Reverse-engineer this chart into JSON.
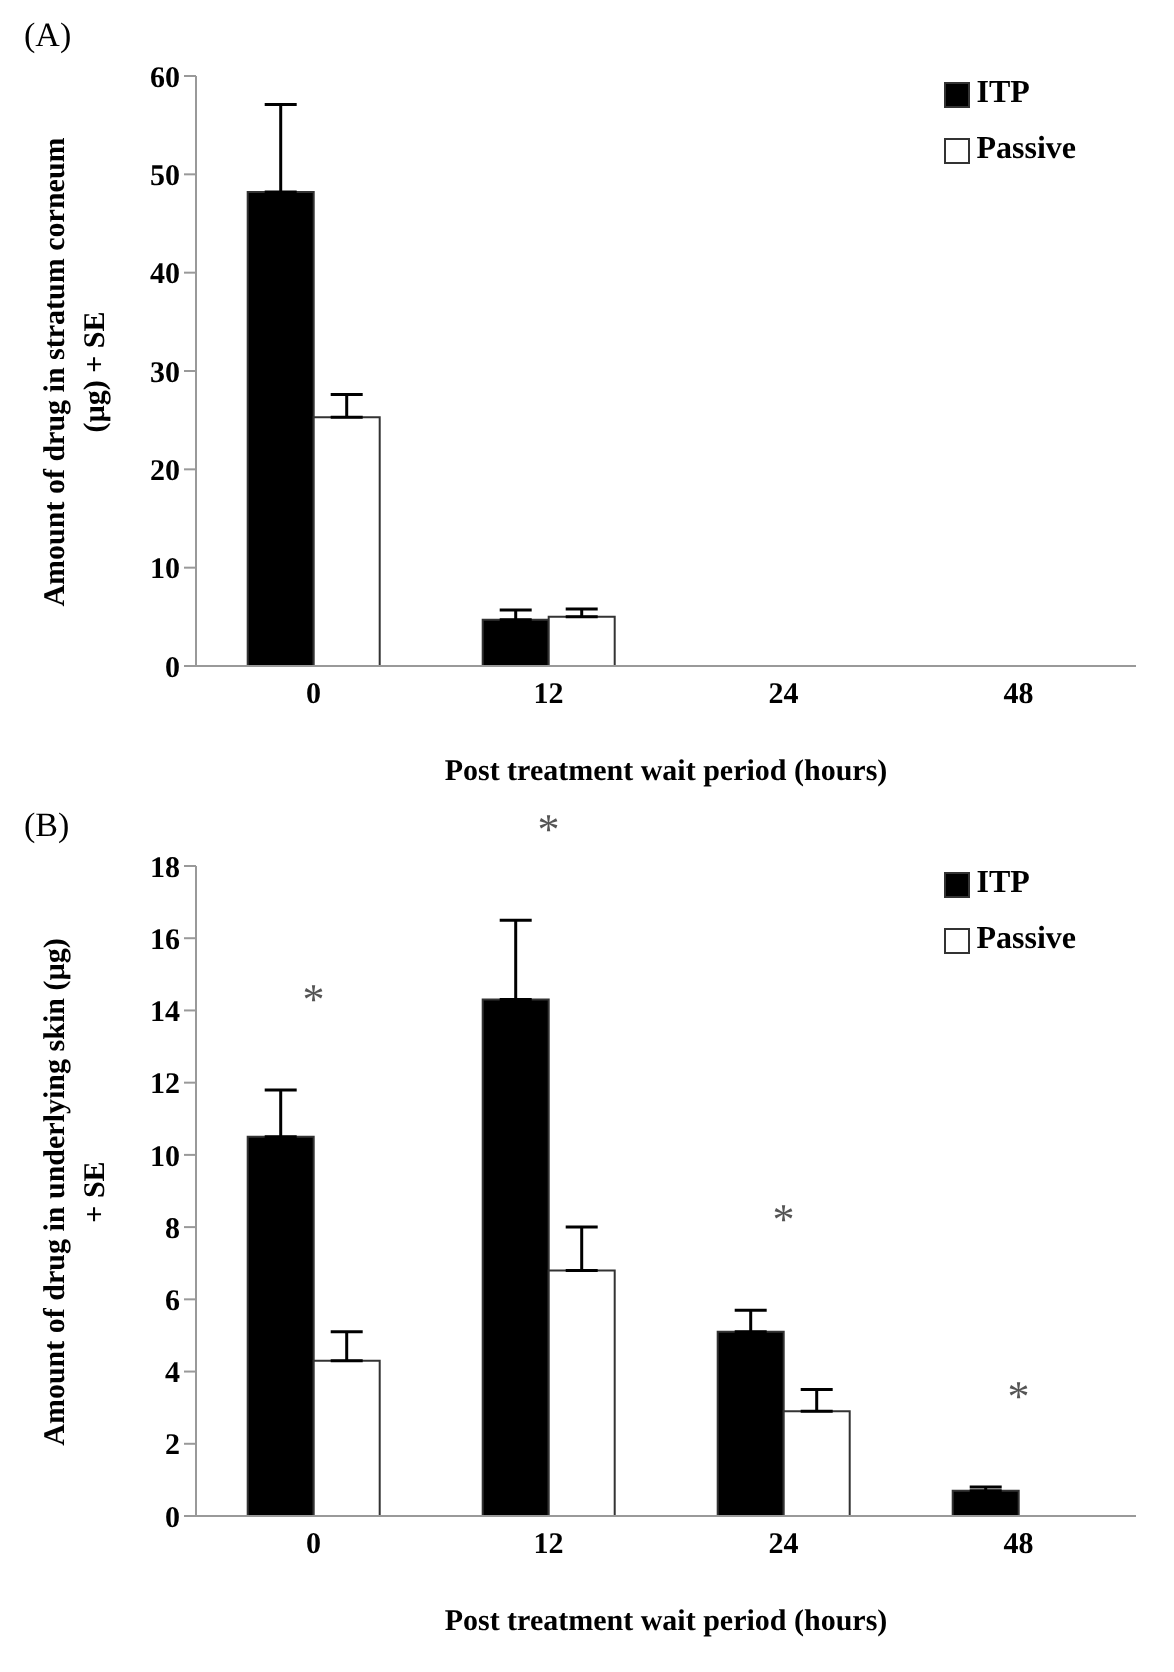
{
  "chart_data": [
    {
      "type": "bar",
      "title": "(A)",
      "xlabel": "Post treatment wait  period (hours)",
      "ylabel": "Amount of drug in stratum corneum (µg) + SE",
      "categories": [
        "0",
        "12",
        "24",
        "48"
      ],
      "series": [
        {
          "name": "ITP",
          "color": "#000000",
          "values": [
            48.2,
            4.7,
            null,
            null
          ],
          "errors": [
            [
              48.2,
              57.1
            ],
            [
              4.7,
              5.7
            ],
            null,
            null
          ]
        },
        {
          "name": "Passive",
          "color": "#ffffff",
          "values": [
            25.3,
            5.0,
            null,
            null
          ],
          "errors": [
            [
              25.3,
              27.6
            ],
            [
              5.0,
              5.8
            ],
            null,
            null
          ]
        }
      ],
      "ylim": [
        0,
        60
      ],
      "yticks": [
        0,
        10,
        20,
        30,
        40,
        50,
        60
      ],
      "grid": false,
      "legend": "top right"
    },
    {
      "type": "bar",
      "title": "(B)",
      "xlabel": "Post treatment wait  period (hours)",
      "ylabel": "Amount of drug in underlying skin (µg) + SE",
      "categories": [
        "0",
        "12",
        "24",
        "48"
      ],
      "series": [
        {
          "name": "ITP",
          "color": "#000000",
          "values": [
            10.5,
            14.3,
            5.1,
            0.7
          ],
          "errors": [
            [
              10.5,
              11.8
            ],
            [
              14.3,
              16.5
            ],
            [
              5.1,
              5.7
            ],
            [
              0.7,
              0.8
            ]
          ]
        },
        {
          "name": "Passive",
          "color": "#ffffff",
          "values": [
            4.3,
            6.8,
            2.9,
            null
          ],
          "errors": [
            [
              4.3,
              5.1
            ],
            [
              6.8,
              8.0
            ],
            [
              2.9,
              3.5
            ],
            null
          ]
        }
      ],
      "annotations": [
        "*",
        "*",
        "*",
        "*"
      ],
      "ylim": [
        0,
        18
      ],
      "yticks": [
        0,
        2,
        4,
        6,
        8,
        10,
        12,
        14,
        16,
        18
      ],
      "grid": false,
      "legend": "top right"
    }
  ]
}
